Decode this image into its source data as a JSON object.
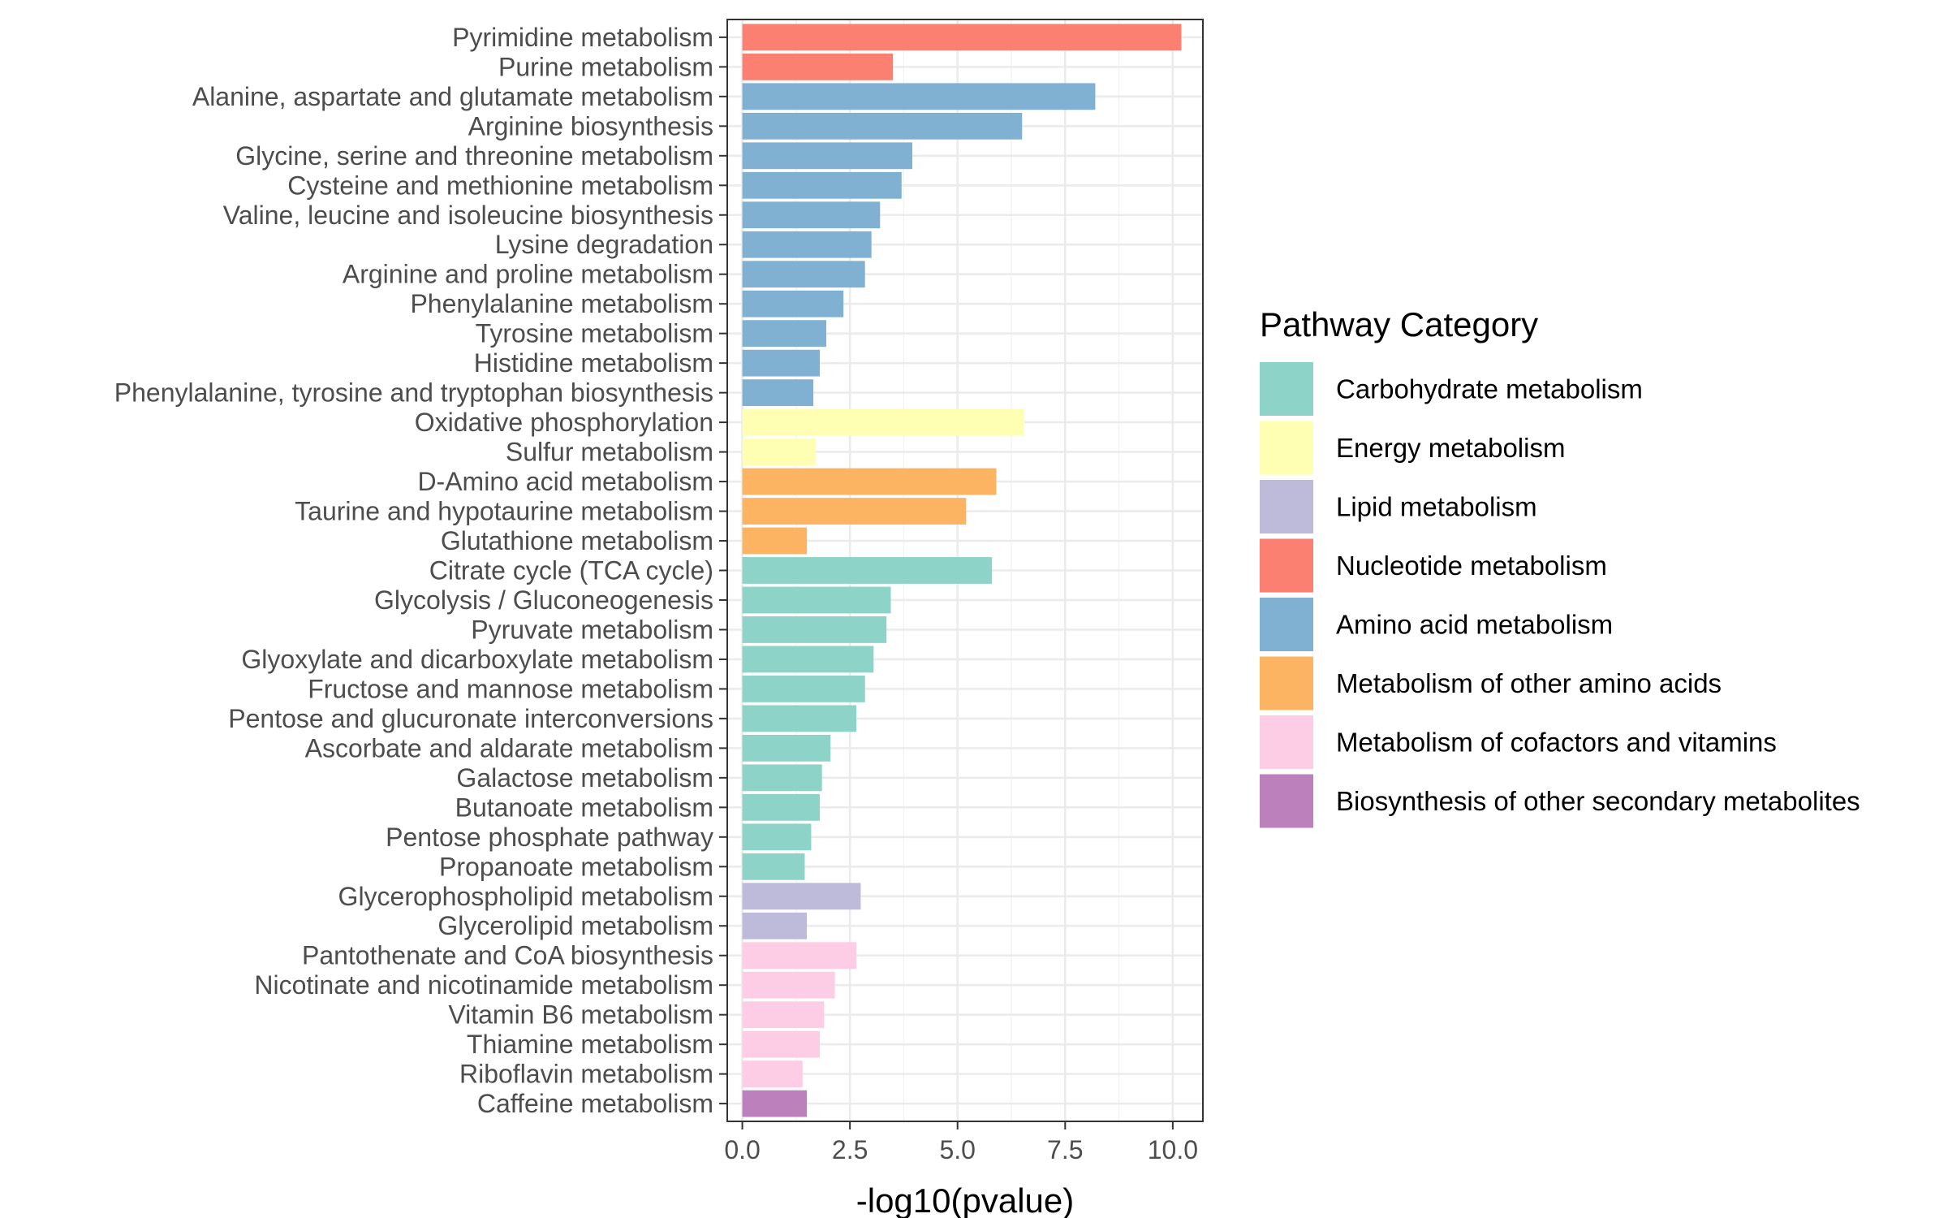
{
  "chart_data": {
    "type": "bar",
    "orientation": "horizontal",
    "title": "",
    "xlabel": "-log10(pvalue)",
    "ylabel": "",
    "xlim": [
      -0.35,
      10.7
    ],
    "xticks": [
      0.0,
      2.5,
      5.0,
      7.5,
      10.0
    ],
    "xtick_labels": [
      "0.0",
      "2.5",
      "5.0",
      "7.5",
      "10.0"
    ],
    "grid": true,
    "legend_position": "right",
    "legend_title": "Pathway Category",
    "legend": [
      {
        "name": "Carbohydrate metabolism",
        "color": "#8DD3C7"
      },
      {
        "name": "Energy metabolism",
        "color": "#FFFFB3"
      },
      {
        "name": "Lipid metabolism",
        "color": "#BEBADA"
      },
      {
        "name": "Nucleotide metabolism",
        "color": "#FB8072"
      },
      {
        "name": "Amino acid metabolism",
        "color": "#80B1D3"
      },
      {
        "name": "Metabolism of other amino acids",
        "color": "#FDB462"
      },
      {
        "name": "Metabolism of cofactors and vitamins",
        "color": "#FCCDE5"
      },
      {
        "name": "Biosynthesis of other secondary metabolites",
        "color": "#BC80BD"
      }
    ],
    "bars": [
      {
        "label": "Pyrimidine metabolism",
        "value": 10.2,
        "category": "Nucleotide metabolism"
      },
      {
        "label": "Purine metabolism",
        "value": 3.5,
        "category": "Nucleotide metabolism"
      },
      {
        "label": "Alanine, aspartate and glutamate metabolism",
        "value": 8.2,
        "category": "Amino acid metabolism"
      },
      {
        "label": "Arginine biosynthesis",
        "value": 6.5,
        "category": "Amino acid metabolism"
      },
      {
        "label": "Glycine, serine and threonine metabolism",
        "value": 3.95,
        "category": "Amino acid metabolism"
      },
      {
        "label": "Cysteine and methionine metabolism",
        "value": 3.7,
        "category": "Amino acid metabolism"
      },
      {
        "label": "Valine, leucine and isoleucine biosynthesis",
        "value": 3.2,
        "category": "Amino acid metabolism"
      },
      {
        "label": "Lysine degradation",
        "value": 3.0,
        "category": "Amino acid metabolism"
      },
      {
        "label": "Arginine and proline metabolism",
        "value": 2.85,
        "category": "Amino acid metabolism"
      },
      {
        "label": "Phenylalanine metabolism",
        "value": 2.35,
        "category": "Amino acid metabolism"
      },
      {
        "label": "Tyrosine metabolism",
        "value": 1.95,
        "category": "Amino acid metabolism"
      },
      {
        "label": "Histidine metabolism",
        "value": 1.8,
        "category": "Amino acid metabolism"
      },
      {
        "label": "Phenylalanine, tyrosine and tryptophan biosynthesis",
        "value": 1.65,
        "category": "Amino acid metabolism"
      },
      {
        "label": "Oxidative phosphorylation",
        "value": 6.55,
        "category": "Energy metabolism"
      },
      {
        "label": "Sulfur metabolism",
        "value": 1.7,
        "category": "Energy metabolism"
      },
      {
        "label": "D-Amino acid metabolism",
        "value": 5.9,
        "category": "Metabolism of other amino acids"
      },
      {
        "label": "Taurine and hypotaurine metabolism",
        "value": 5.2,
        "category": "Metabolism of other amino acids"
      },
      {
        "label": "Glutathione metabolism",
        "value": 1.5,
        "category": "Metabolism of other amino acids"
      },
      {
        "label": "Citrate cycle (TCA cycle)",
        "value": 5.8,
        "category": "Carbohydrate metabolism"
      },
      {
        "label": "Glycolysis / Gluconeogenesis",
        "value": 3.45,
        "category": "Carbohydrate metabolism"
      },
      {
        "label": "Pyruvate metabolism",
        "value": 3.35,
        "category": "Carbohydrate metabolism"
      },
      {
        "label": "Glyoxylate and dicarboxylate metabolism",
        "value": 3.05,
        "category": "Carbohydrate metabolism"
      },
      {
        "label": "Fructose and mannose metabolism",
        "value": 2.85,
        "category": "Carbohydrate metabolism"
      },
      {
        "label": "Pentose and glucuronate interconversions",
        "value": 2.65,
        "category": "Carbohydrate metabolism"
      },
      {
        "label": "Ascorbate and aldarate metabolism",
        "value": 2.05,
        "category": "Carbohydrate metabolism"
      },
      {
        "label": "Galactose metabolism",
        "value": 1.85,
        "category": "Carbohydrate metabolism"
      },
      {
        "label": "Butanoate metabolism",
        "value": 1.8,
        "category": "Carbohydrate metabolism"
      },
      {
        "label": "Pentose phosphate pathway",
        "value": 1.6,
        "category": "Carbohydrate metabolism"
      },
      {
        "label": "Propanoate metabolism",
        "value": 1.45,
        "category": "Carbohydrate metabolism"
      },
      {
        "label": "Glycerophospholipid metabolism",
        "value": 2.75,
        "category": "Lipid metabolism"
      },
      {
        "label": "Glycerolipid metabolism",
        "value": 1.5,
        "category": "Lipid metabolism"
      },
      {
        "label": "Pantothenate and CoA biosynthesis",
        "value": 2.65,
        "category": "Metabolism of cofactors and vitamins"
      },
      {
        "label": "Nicotinate and nicotinamide metabolism",
        "value": 2.15,
        "category": "Metabolism of cofactors and vitamins"
      },
      {
        "label": "Vitamin B6 metabolism",
        "value": 1.9,
        "category": "Metabolism of cofactors and vitamins"
      },
      {
        "label": "Thiamine metabolism",
        "value": 1.8,
        "category": "Metabolism of cofactors and vitamins"
      },
      {
        "label": "Riboflavin metabolism",
        "value": 1.4,
        "category": "Metabolism of cofactors and vitamins"
      },
      {
        "label": "Caffeine metabolism",
        "value": 1.5,
        "category": "Biosynthesis of other secondary metabolites"
      }
    ]
  }
}
